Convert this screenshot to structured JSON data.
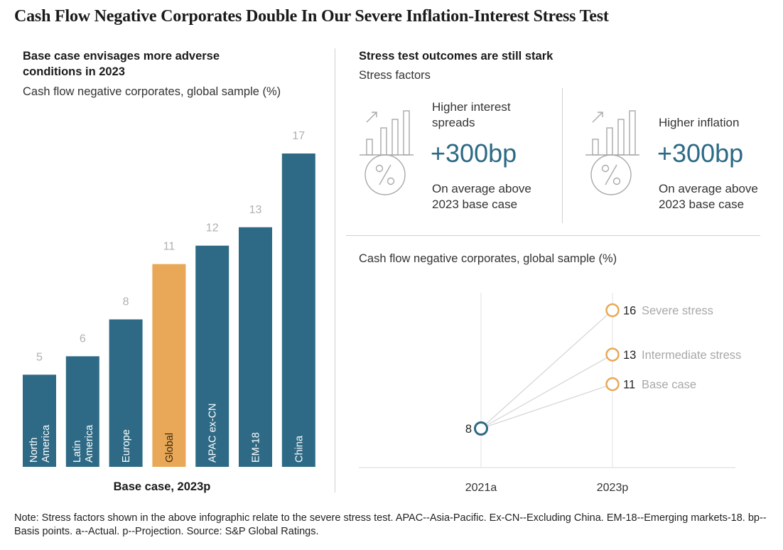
{
  "title": "Cash Flow Negative Corporates Double In Our Severe Inflation-Interest Stress Test",
  "left_panel": {
    "heading": "Base case envisages more adverse conditions in 2023",
    "subheading": "Cash flow negative corporates, global sample (%)",
    "xlabel": "Base case, 2023p"
  },
  "right_panel": {
    "heading": "Stress test outcomes are still stark",
    "factors_title": "Stress factors",
    "factors": [
      {
        "label": "Higher interest spreads",
        "value": "+300bp",
        "note": "On average above 2023 base case",
        "icon": "chart-percent-icon"
      },
      {
        "label": "Higher inflation",
        "value": "+300bp",
        "note": "On average above 2023 base case",
        "icon": "chart-percent-icon"
      }
    ],
    "line_subheading": "Cash flow negative corporates, global sample (%)"
  },
  "chart_data": [
    {
      "type": "bar",
      "categories": [
        "North America",
        "Latin America",
        "Europe",
        "Global",
        "APAC ex-CN",
        "EM-18",
        "China"
      ],
      "category_lines": [
        [
          "North",
          "America"
        ],
        [
          "Latin",
          "America"
        ],
        [
          "Europe"
        ],
        [
          "Global"
        ],
        [
          "APAC ex-CN"
        ],
        [
          "EM-18"
        ],
        [
          "China"
        ]
      ],
      "values": [
        5,
        6,
        8,
        11,
        12,
        13,
        17
      ],
      "highlight": "Global",
      "colors": {
        "default": "#2e6a85",
        "highlight": "#e8a857",
        "value_label": "#b0b0b0"
      },
      "title": "Cash flow negative corporates, global sample (%)",
      "xlabel": "Base case, 2023p",
      "ylim": [
        0,
        17
      ]
    },
    {
      "type": "line",
      "x": [
        "2021a",
        "2023p"
      ],
      "start": {
        "x": "2021a",
        "y": 8,
        "label": "8"
      },
      "series": [
        {
          "name": "Severe stress",
          "values": [
            8,
            16
          ]
        },
        {
          "name": "Intermediate stress",
          "values": [
            8,
            13
          ]
        },
        {
          "name": "Base case",
          "values": [
            8,
            11
          ]
        }
      ],
      "colors": {
        "start_marker": "#2e6a85",
        "end_marker": "#e8a857",
        "lines": "#d4d4d4",
        "series_label": "#a8a8a8"
      },
      "title": "Cash flow negative corporates, global sample (%)"
    }
  ],
  "footnote": "Note: Stress factors shown in the above infographic relate to the severe stress test. APAC--Asia-Pacific. Ex-CN--Excluding China. EM-18--Emerging markets-18. bp--Basis points. a--Actual. p--Projection. Source: S&P Global Ratings."
}
